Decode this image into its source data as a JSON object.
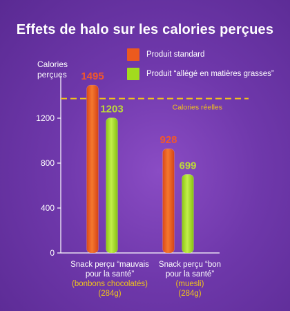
{
  "chart_data": {
    "type": "bar",
    "title": "Effets de halo sur les calories perçues",
    "ylabel": "Calories perçues",
    "ylim": [
      0,
      1600
    ],
    "yticks": [
      0,
      400,
      800,
      1200
    ],
    "grid": false,
    "legend_position": "top-right",
    "categories": [
      {
        "line1": "Snack perçu “mauvais",
        "line2": "pour la santé”",
        "sub1": "(bonbons chocolatés)",
        "sub2": "(284g)"
      },
      {
        "line1": "Snack perçu “bon",
        "line2": "pour la santé”",
        "sub1": "(muesli)",
        "sub2": "(284g)"
      }
    ],
    "series": [
      {
        "name": "Produit standard",
        "color": "#ec5a1e",
        "label_color": "#f2572a",
        "values": [
          1495,
          928
        ]
      },
      {
        "name": "Produit “allégé en matières grasses”",
        "color": "#a2db1e",
        "label_color": "#bcd83a",
        "values": [
          1203,
          699
        ]
      }
    ],
    "reference_line": {
      "label": "Calories réelles",
      "value": 1375,
      "color": "#f2c21a"
    }
  }
}
